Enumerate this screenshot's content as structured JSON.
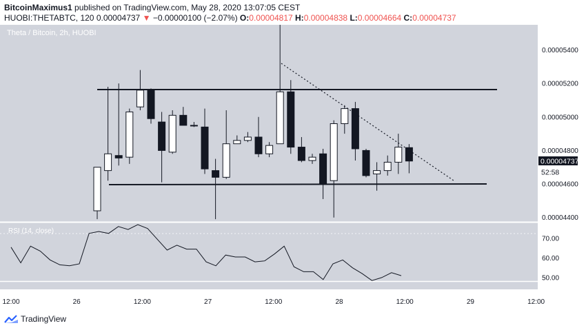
{
  "header": {
    "author": "BitcoinMaximus1",
    "published_text": "published on TradingView.com, May 28, 2020 13:07:05 CEST",
    "symbol": "HUOBI:THETABTC, 120",
    "last_price": "0.00004737",
    "change_arrow": "▼",
    "change": "−0.00000100 (−2.07%)",
    "o_label": "O:",
    "o_value": "0.00004817",
    "h_label": "H:",
    "h_value": "0.00004838",
    "l_label": "L:",
    "l_value": "0.00004664",
    "c_label": "C:",
    "c_value": "0.00004737"
  },
  "chart_data": {
    "type": "candlestick",
    "title": "Theta / Bitcoin, 2h, HUOBI",
    "price_axis": {
      "ticks": [
        "0.00005400",
        "0.00005200",
        "0.00005000",
        "0.00004800",
        "0.00004600",
        "0.00004400"
      ],
      "ylim": [
        4.37e-05,
        5.55e-05
      ]
    },
    "last_price_label": "0.00004737",
    "countdown_label": "52:58",
    "time_axis": {
      "ticks": [
        "12:00",
        "26",
        "12:00",
        "27",
        "12:00",
        "28",
        "12:00",
        "29",
        "12:00"
      ]
    },
    "candles": [
      {
        "o": 4.44e-05,
        "h": 4.7e-05,
        "l": 4.39e-05,
        "c": 4.7e-05
      },
      {
        "o": 4.68e-05,
        "h": 5.18e-05,
        "l": 4.62e-05,
        "c": 4.78e-05
      },
      {
        "o": 4.77e-05,
        "h": 5.2e-05,
        "l": 4.71e-05,
        "c": 4.755e-05
      },
      {
        "o": 4.76e-05,
        "h": 5.05e-05,
        "l": 4.72e-05,
        "c": 5.03e-05
      },
      {
        "o": 5.06e-05,
        "h": 5.28e-05,
        "l": 5.04e-05,
        "c": 5.16e-05
      },
      {
        "o": 5.16e-05,
        "h": 5.17e-05,
        "l": 4.96e-05,
        "c": 4.99e-05
      },
      {
        "o": 4.97e-05,
        "h": 5.03e-05,
        "l": 4.61e-05,
        "c": 4.8e-05
      },
      {
        "o": 4.79e-05,
        "h": 5.04e-05,
        "l": 4.78e-05,
        "c": 5.01e-05
      },
      {
        "o": 5.01e-05,
        "h": 5.06e-05,
        "l": 4.95e-05,
        "c": 4.95e-05
      },
      {
        "o": 4.95e-05,
        "h": 4.97e-05,
        "l": 4.94e-05,
        "c": 4.95e-05
      },
      {
        "o": 4.94e-05,
        "h": 5.05e-05,
        "l": 4.66e-05,
        "c": 4.69e-05
      },
      {
        "o": 4.68e-05,
        "h": 4.75e-05,
        "l": 4.39e-05,
        "c": 4.64e-05
      },
      {
        "o": 4.64e-05,
        "h": 5.04e-05,
        "l": 4.63e-05,
        "c": 4.84e-05
      },
      {
        "o": 4.84e-05,
        "h": 4.89e-05,
        "l": 4.84e-05,
        "c": 4.86e-05
      },
      {
        "o": 4.86e-05,
        "h": 4.91e-05,
        "l": 4.85e-05,
        "c": 4.88e-05
      },
      {
        "o": 4.88e-05,
        "h": 5e-05,
        "l": 4.76e-05,
        "c": 4.78e-05
      },
      {
        "o": 4.78e-05,
        "h": 4.85e-05,
        "l": 4.76e-05,
        "c": 4.83e-05
      },
      {
        "o": 4.84e-05,
        "h": 5.55e-05,
        "l": 4.84e-05,
        "c": 5.15e-05
      },
      {
        "o": 5.15e-05,
        "h": 5.22e-05,
        "l": 4.78e-05,
        "c": 4.82e-05
      },
      {
        "o": 4.82e-05,
        "h": 4.88e-05,
        "l": 4.73e-05,
        "c": 4.74e-05
      },
      {
        "o": 4.74e-05,
        "h": 4.78e-05,
        "l": 4.72e-05,
        "c": 4.76e-05
      },
      {
        "o": 4.78e-05,
        "h": 4.81e-05,
        "l": 4.51e-05,
        "c": 4.6e-05
      },
      {
        "o": 4.62e-05,
        "h": 4.98e-05,
        "l": 4.4e-05,
        "c": 4.96e-05
      },
      {
        "o": 4.96e-05,
        "h": 5.07e-05,
        "l": 4.9e-05,
        "c": 5.05e-05
      },
      {
        "o": 5.05e-05,
        "h": 5.09e-05,
        "l": 4.74e-05,
        "c": 4.81e-05
      },
      {
        "o": 4.8e-05,
        "h": 4.81e-05,
        "l": 4.64e-05,
        "c": 4.65e-05
      },
      {
        "o": 4.66e-05,
        "h": 4.73e-05,
        "l": 4.56e-05,
        "c": 4.68e-05
      },
      {
        "o": 4.68e-05,
        "h": 4.77e-05,
        "l": 4.65e-05,
        "c": 4.73e-05
      },
      {
        "o": 4.73e-05,
        "h": 4.9e-05,
        "l": 4.66e-05,
        "c": 4.82e-05
      },
      {
        "o": 4.817e-05,
        "h": 4.838e-05,
        "l": 4.664e-05,
        "c": 4.737e-05
      }
    ],
    "indicator": {
      "label": "RSI (14, close)",
      "ticks": [
        "70.00",
        "60.00",
        "50.00"
      ],
      "ylim": [
        44,
        77
      ],
      "values": [
        65.5,
        57.5,
        66,
        63.5,
        59,
        56.5,
        56,
        57,
        72.5,
        73.5,
        72.5,
        76,
        74.5,
        77,
        75,
        69.5,
        64,
        66.5,
        64.5,
        64.5,
        58,
        56,
        61.5,
        60.5,
        60.5,
        58,
        58.5,
        62,
        66,
        55.5,
        53,
        53,
        49,
        57,
        59,
        55,
        52,
        48.5,
        50,
        52.5,
        51
      ]
    }
  },
  "footer": {
    "brand": "TradingView"
  },
  "colors": {
    "background": "#d1d4dc",
    "candle_up": "#ffffff",
    "candle_down": "#131722",
    "price_tag": "#131722",
    "down": "#ef5350"
  }
}
